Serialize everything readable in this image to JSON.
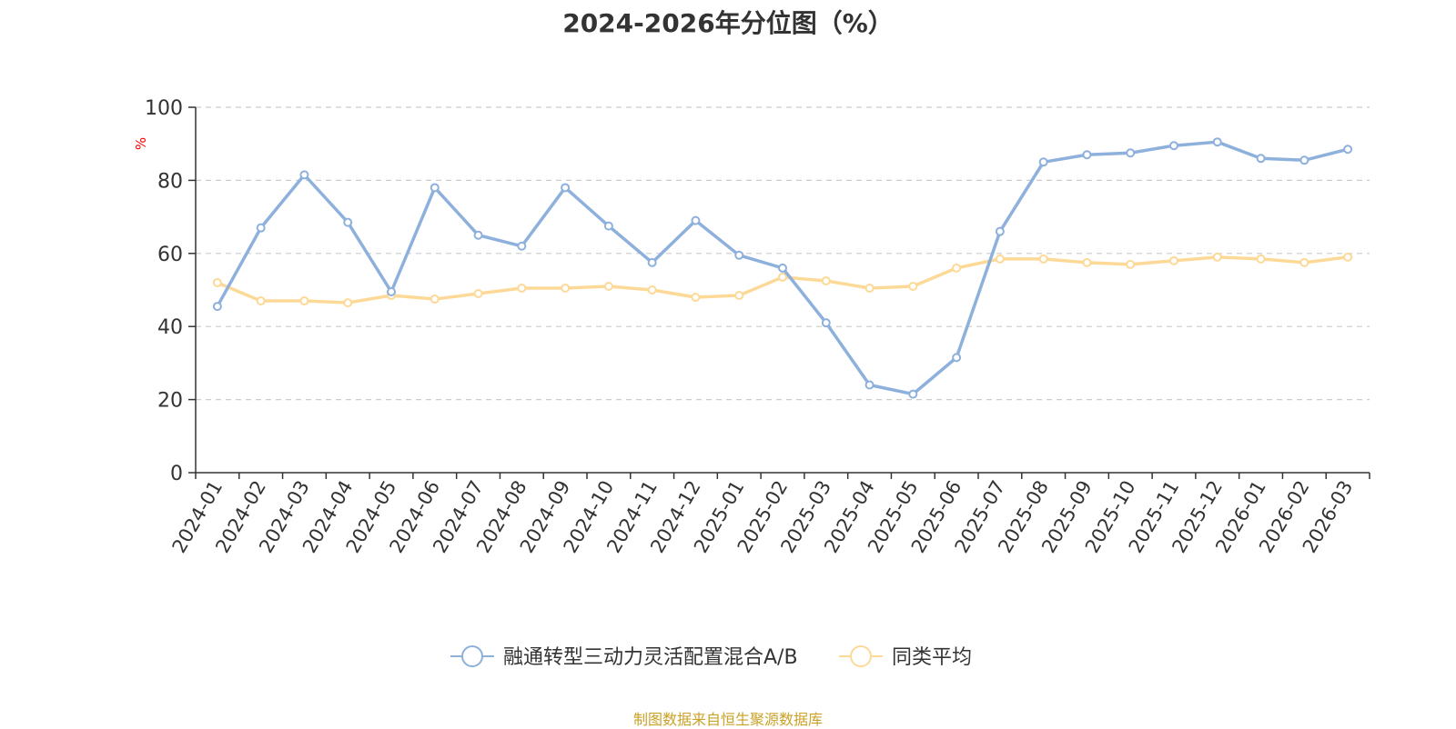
{
  "chart_data": {
    "type": "line",
    "title": "2024-2026年分位图（%）",
    "ylabel": "%",
    "xlabel": "",
    "ylim": [
      0,
      100
    ],
    "yticks": [
      0,
      20,
      40,
      60,
      80,
      100
    ],
    "grid": true,
    "legend_position": "bottom",
    "categories": [
      "2024-01",
      "2024-02",
      "2024-03",
      "2024-04",
      "2024-05",
      "2024-06",
      "2024-07",
      "2024-08",
      "2024-09",
      "2024-10",
      "2024-11",
      "2024-12",
      "2025-01",
      "2025-02",
      "2025-03",
      "2025-04",
      "2025-05",
      "2025-06",
      "2025-07",
      "2025-08",
      "2025-09",
      "2025-10",
      "2025-11",
      "2025-12",
      "2026-01",
      "2026-02",
      "2026-03"
    ],
    "series": [
      {
        "name": "融通转型三动力灵活配置混合A/B",
        "color": "#8eb0dc",
        "values": [
          45.5,
          67,
          81.5,
          68.5,
          49.5,
          78,
          65,
          62,
          78,
          67.5,
          57.5,
          69,
          59.5,
          56,
          41,
          24,
          21.5,
          31.5,
          66,
          85,
          87,
          87.5,
          89.5,
          90.5,
          86,
          85.5,
          88.5
        ]
      },
      {
        "name": "同类平均",
        "color": "#fdd997",
        "values": [
          52,
          47,
          47,
          46.5,
          48.5,
          47.5,
          49,
          50.5,
          50.5,
          51,
          50,
          48,
          48.5,
          53.5,
          52.5,
          50.5,
          51,
          56,
          58.5,
          58.5,
          57.5,
          57,
          58,
          59,
          58.5,
          57.5,
          59
        ]
      }
    ]
  },
  "source_note": "制图数据来自恒生聚源数据库"
}
